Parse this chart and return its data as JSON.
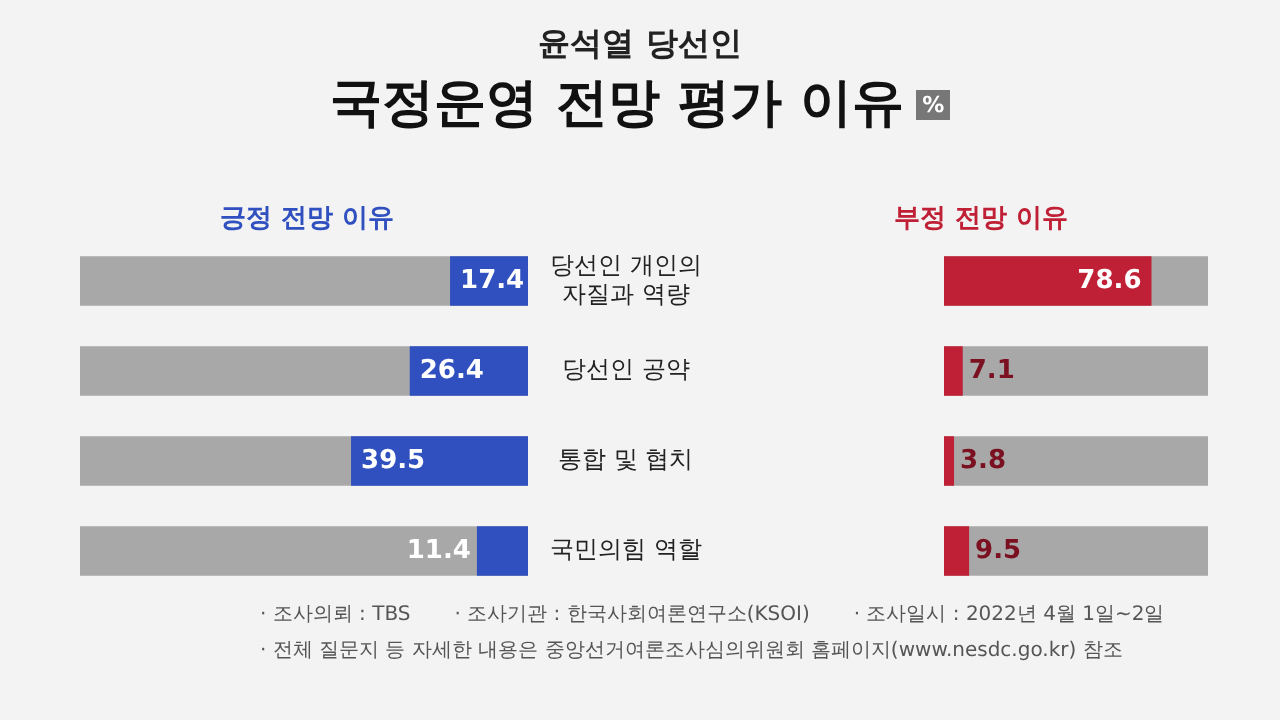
{
  "chart_data": [
    {
      "type": "other",
      "subtitle": "윤석열 당선인",
      "title": "국정운영 전망 평가 이유",
      "annotations": [
        "%",
        "· 조사의뢰 : TBS",
        "· 조사기관 : 한국사회여론연구소(KSOI)",
        "· 조사일시 : 2022년 4월 1일~2일",
        "· 전체 질문지 등 자세한 내용은 중앙선거여론조사심의위원회 홈페이지(www.nesdc.go.kr) 참조"
      ]
    },
    {
      "type": "bar",
      "orientation": "horizontal",
      "title": "긍정 전망 이유",
      "categories": [
        "당선인 개인의\n자질과 역량",
        "당선인 공약",
        "통합 및 협치",
        "국민의힘 역할"
      ],
      "series": [
        {
          "color": "#3050c0",
          "values": [
            17.4,
            26.4,
            39.5,
            11.4
          ]
        }
      ],
      "xlim": [
        100,
        0
      ],
      "data_labels": true,
      "tick_labels": "y"
    },
    {
      "type": "bar",
      "orientation": "horizontal",
      "title": "부정 전망 이유",
      "categories": [
        null,
        null,
        null,
        null
      ],
      "series": [
        {
          "color": "#c02035",
          "values": [
            78.6,
            7.1,
            3.8,
            9.5
          ]
        }
      ],
      "xlim": [
        0,
        100
      ],
      "data_labels": true,
      "tick_labels": false
    }
  ]
}
